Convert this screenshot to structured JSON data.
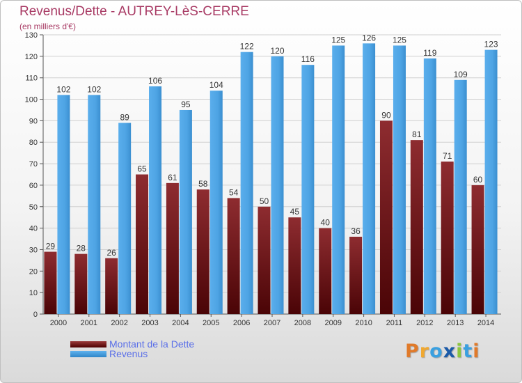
{
  "title": "Revenus/Dette - AUTREY-LèS-CERRE",
  "subtitle": "(en milliers d'€)",
  "legend": {
    "dette": "Montant de la Dette",
    "revenus": "Revenus"
  },
  "logo": {
    "text": "Proxiti",
    "letters": [
      "P",
      "r",
      "o",
      "x",
      "i",
      "t",
      "i"
    ],
    "colors": [
      "#e07a2a",
      "#f0a830",
      "#3aa0e0",
      "#1b5aa8",
      "#8cc63e",
      "#3aa0e0",
      "#e07a2a"
    ]
  },
  "colors": {
    "dette": "#7a1e22",
    "revenus": "#4fa6e6",
    "title": "#a83a64",
    "legend_text": "#5a6fe8"
  },
  "chart_data": {
    "type": "bar",
    "categories": [
      "2000",
      "2001",
      "2002",
      "2003",
      "2004",
      "2005",
      "2006",
      "2007",
      "2008",
      "2009",
      "2010",
      "2011",
      "2012",
      "2013",
      "2014"
    ],
    "series": [
      {
        "name": "Montant de la Dette",
        "values": [
          29,
          28,
          26,
          65,
          61,
          58,
          54,
          50,
          45,
          40,
          36,
          90,
          81,
          71,
          60
        ]
      },
      {
        "name": "Revenus",
        "values": [
          102,
          102,
          89,
          106,
          95,
          104,
          122,
          120,
          116,
          125,
          126,
          125,
          119,
          109,
          123
        ]
      }
    ],
    "ylim": [
      0,
      130
    ],
    "yticks": [
      0,
      10,
      20,
      30,
      40,
      50,
      60,
      70,
      80,
      90,
      100,
      110,
      120,
      130
    ],
    "grid": true,
    "data_labels": true,
    "legend_position": "bottom-left"
  }
}
